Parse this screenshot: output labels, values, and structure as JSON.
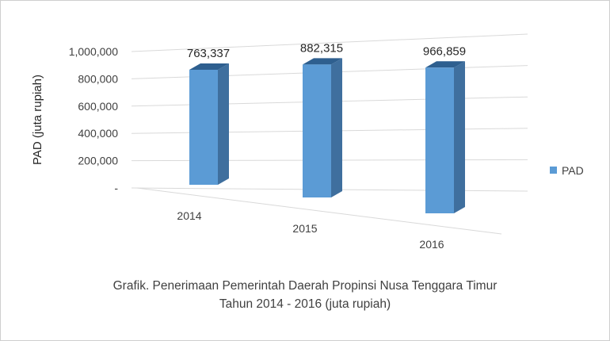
{
  "chart_data": {
    "type": "bar",
    "categories": [
      "2014",
      "2015",
      "2016"
    ],
    "series": [
      {
        "name": "PAD",
        "values": [
          763337,
          882315,
          966859
        ],
        "labels": [
          "763,337",
          "882,315",
          "966,859"
        ]
      }
    ],
    "ylabel": "PAD (juta rupiah)",
    "ylim": [
      0,
      1000000
    ],
    "yticks": [
      "-",
      "200,000",
      "400,000",
      "600,000",
      "800,000",
      "1,000,000"
    ],
    "grid": true,
    "legend": "right",
    "style": "3d-column",
    "colors": {
      "bar_front": "#5b9bd5",
      "bar_side": "#3f6f9e",
      "bar_top": "#2e5f8f",
      "grid": "#d9d9d9"
    }
  },
  "caption": {
    "line1": "Grafik. Penerimaan Pemerintah Daerah Propinsi Nusa Tenggara Timur",
    "line2": "Tahun 2014 - 2016 (juta rupiah)"
  }
}
